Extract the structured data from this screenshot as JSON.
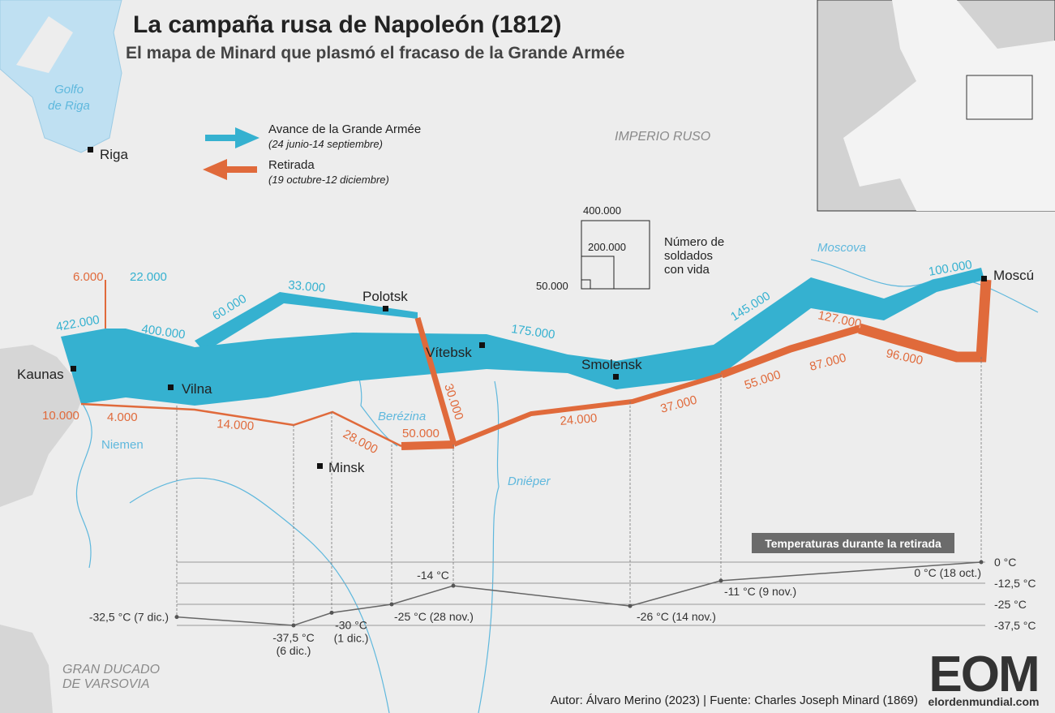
{
  "header": {
    "title": "La campaña rusa de Napoleón (1812)",
    "subtitle": "El mapa de Minard que plasmó el fracaso de la Grande Armée"
  },
  "legend": {
    "advance": {
      "label": "Avance de la Grande Armée",
      "dates": "(24 junio-14 septiembre)"
    },
    "retreat": {
      "label": "Retirada",
      "dates": "(19 octubre-12 diciembre)"
    }
  },
  "size_legend": {
    "title": [
      "Número de",
      "soldados",
      "con vida"
    ],
    "sizes": [
      "400.000",
      "200.000",
      "50.000"
    ]
  },
  "places": [
    "Riga",
    "Kaunas",
    "Vilna",
    "Polotsk",
    "Vítebsk",
    "Smolensk",
    "Minsk",
    "Moscú"
  ],
  "water": [
    "Golfo",
    "de Riga",
    "Moscova",
    "Niemen",
    "Berézina",
    "Dniéper"
  ],
  "regions": [
    "IMPERIO RUSO",
    "GRAN DUCADO",
    "DE VARSOVIA"
  ],
  "advance_labels": [
    "422.000",
    "400.000",
    "22.000",
    "60.000",
    "33.000",
    "175.000",
    "145.000",
    "100.000"
  ],
  "retreat_labels": [
    "6.000",
    "10.000",
    "4.000",
    "14.000",
    "28.000",
    "50.000",
    "30.000",
    "24.000",
    "37.000",
    "55.000",
    "87.000",
    "96.000",
    "127.000"
  ],
  "temperatures": {
    "title": "Temperaturas durante la retirada",
    "ylim": [
      -37.5,
      0
    ],
    "yticks": [
      {
        "value": 0,
        "label": "0 °C"
      },
      {
        "value": -12.5,
        "label": "-12,5 °C"
      },
      {
        "value": -25,
        "label": "-25 °C"
      },
      {
        "value": -37.5,
        "label": "-37,5 °C"
      }
    ],
    "points": [
      {
        "value": -32.5,
        "label": "-32,5 °C (7 dic.)"
      },
      {
        "value": -37.5,
        "label": "-37,5 °C",
        "date": "(6 dic.)"
      },
      {
        "value": -30,
        "label": "-30 °C",
        "date": "(1 dic.)"
      },
      {
        "value": -25,
        "label": "-25 °C (28 nov.)"
      },
      {
        "value": -14,
        "label": "-14 °C"
      },
      {
        "value": -26,
        "label": "-26 °C (14 nov.)"
      },
      {
        "value": -11,
        "label": "-11 °C (9 nov.)"
      },
      {
        "value": 0,
        "label": "0 °C (18 oct.)"
      }
    ]
  },
  "footer": {
    "credit": "Autor: Álvaro Merino (2023) | Fuente: Charles Joseph Minard (1869)",
    "logo": "EOM",
    "site": "elordenmundial.com"
  }
}
